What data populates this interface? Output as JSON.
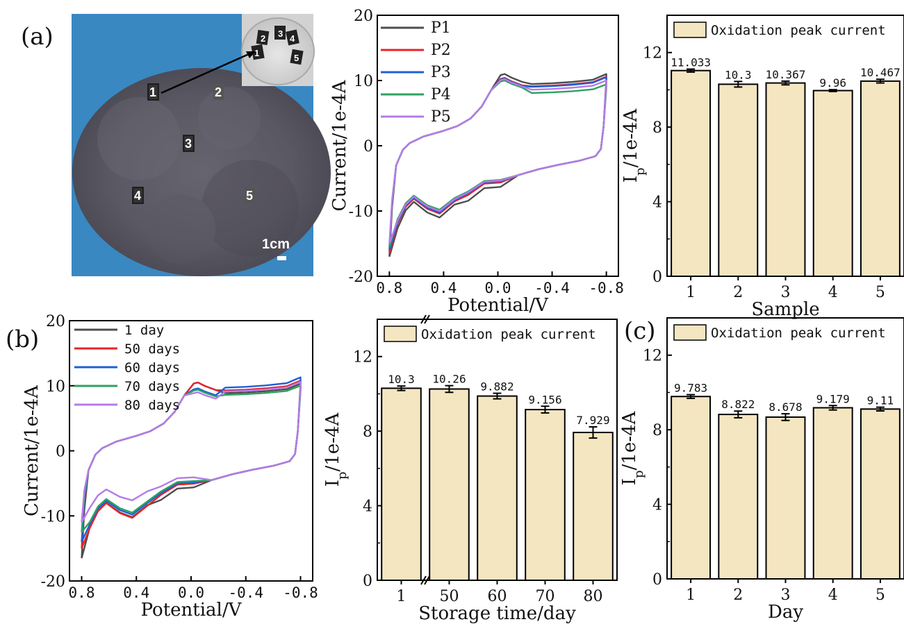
{
  "panel_labels": {
    "a": "(a)",
    "b": "(b)",
    "c": "(c)"
  },
  "photo": {
    "scale_bar_label": "1cm",
    "spot_labels": [
      "1",
      "2",
      "3",
      "4",
      "5"
    ],
    "inset_labels": [
      "1",
      "2",
      "3",
      "4",
      "5"
    ]
  },
  "chart_data": [
    {
      "id": "cv_samples",
      "type": "line",
      "xlabel": "Potential/V",
      "ylabel": "Current/1e-4A",
      "x_ticks": [
        "0.8",
        "0.4",
        "0.0",
        "-0.4",
        "-0.8"
      ],
      "y_ticks": [
        "20",
        "10",
        "0",
        "-10",
        "-20"
      ],
      "xlim": [
        0.8,
        -0.8
      ],
      "ylim": [
        -20,
        20
      ],
      "legend_position": "top-left",
      "series": [
        {
          "name": "P1",
          "color": "#4d4d4d",
          "oxidation_peak": 11.0,
          "forward_end": 11.0,
          "reverse_min": -11.0,
          "start": -17.0,
          "mid_rev": -6.5
        },
        {
          "name": "P2",
          "color": "#e8232a",
          "oxidation_peak": 10.4,
          "forward_end": 10.6,
          "reverse_min": -10.4,
          "start": -16.5,
          "mid_rev": -5.8
        },
        {
          "name": "P3",
          "color": "#1f5fd6",
          "oxidation_peak": 10.3,
          "forward_end": 10.5,
          "reverse_min": -10.2,
          "start": -16.0,
          "mid_rev": -5.6
        },
        {
          "name": "P4",
          "color": "#2ca25f",
          "oxidation_peak": 10.0,
          "forward_end": 9.4,
          "reverse_min": -9.8,
          "start": -15.5,
          "mid_rev": -5.4
        },
        {
          "name": "P5",
          "color": "#b57be8",
          "oxidation_peak": 10.2,
          "forward_end": 10.0,
          "reverse_min": -10.0,
          "start": -15.0,
          "mid_rev": -5.5
        }
      ]
    },
    {
      "id": "bar_samples",
      "type": "bar",
      "xlabel": "Sample",
      "ylabel": "I_p/1e-4A",
      "categories": [
        "1",
        "2",
        "3",
        "4",
        "5"
      ],
      "values": [
        11.033,
        10.3,
        10.367,
        9.96,
        10.467
      ],
      "value_labels": [
        "11.033",
        "10.3",
        "10.367",
        "9.96",
        "10.467"
      ],
      "errors": [
        0.08,
        0.15,
        0.1,
        0.05,
        0.1
      ],
      "y_ticks": [
        "0",
        "4",
        "8",
        "12"
      ],
      "ylim": [
        0,
        14
      ],
      "legend": "Oxidation peak current",
      "bar_color": "#f5e6c2"
    },
    {
      "id": "cv_storage",
      "type": "line",
      "xlabel": "Potential/V",
      "ylabel": "Current/1e-4A",
      "x_ticks": [
        "0.8",
        "0.4",
        "0.0",
        "-0.4",
        "-0.8"
      ],
      "y_ticks": [
        "20",
        "10",
        "0",
        "-10",
        "-20"
      ],
      "xlim": [
        0.8,
        -0.8
      ],
      "ylim": [
        -20,
        20
      ],
      "legend_position": "top-left",
      "series": [
        {
          "name": "1 day",
          "color": "#4d4d4d",
          "oxidation_peak": 10.5,
          "forward_end": 10.3,
          "reverse_min": -10.2,
          "start": -16.5,
          "mid_rev": -5.8
        },
        {
          "name": "50 days",
          "color": "#e8232a",
          "oxidation_peak": 10.5,
          "forward_end": 10.8,
          "reverse_min": -10.3,
          "start": -15.0,
          "mid_rev": -5.2
        },
        {
          "name": "60 days",
          "color": "#1f5fd6",
          "oxidation_peak": 9.6,
          "forward_end": 11.3,
          "reverse_min": -9.8,
          "start": -14.0,
          "mid_rev": -5.0
        },
        {
          "name": "70 days",
          "color": "#2ca25f",
          "oxidation_peak": 9.4,
          "forward_end": 10.0,
          "reverse_min": -9.5,
          "start": -12.5,
          "mid_rev": -4.8
        },
        {
          "name": "80 days",
          "color": "#b57be8",
          "oxidation_peak": 9.0,
          "forward_end": 10.6,
          "reverse_min": -7.6,
          "start": -11.0,
          "mid_rev": -4.2
        }
      ]
    },
    {
      "id": "bar_storage",
      "type": "bar",
      "xlabel": "Storage time/day",
      "ylabel": "I_p/1e-4A",
      "categories": [
        "1",
        "50",
        "60",
        "70",
        "80"
      ],
      "values": [
        10.3,
        10.26,
        9.882,
        9.156,
        7.929
      ],
      "value_labels": [
        "10.3",
        "10.26",
        "9.882",
        "9.156",
        "7.929"
      ],
      "errors": [
        0.12,
        0.18,
        0.15,
        0.18,
        0.3
      ],
      "y_ticks": [
        "0",
        "4",
        "8",
        "12"
      ],
      "ylim": [
        0,
        14
      ],
      "legend": "Oxidation peak current",
      "bar_color": "#f5e6c2",
      "axis_break": true
    },
    {
      "id": "bar_days",
      "type": "bar",
      "xlabel": "Day",
      "ylabel": "I_p/1e-4A",
      "categories": [
        "1",
        "2",
        "3",
        "4",
        "5"
      ],
      "values": [
        9.783,
        8.822,
        8.678,
        9.179,
        9.11
      ],
      "value_labels": [
        "9.783",
        "8.822",
        "8.678",
        "9.179",
        "9.11"
      ],
      "errors": [
        0.1,
        0.18,
        0.18,
        0.12,
        0.1
      ],
      "y_ticks": [
        "0",
        "4",
        "8",
        "12"
      ],
      "ylim": [
        0,
        14
      ],
      "legend": "Oxidation peak current",
      "bar_color": "#f5e6c2"
    }
  ]
}
